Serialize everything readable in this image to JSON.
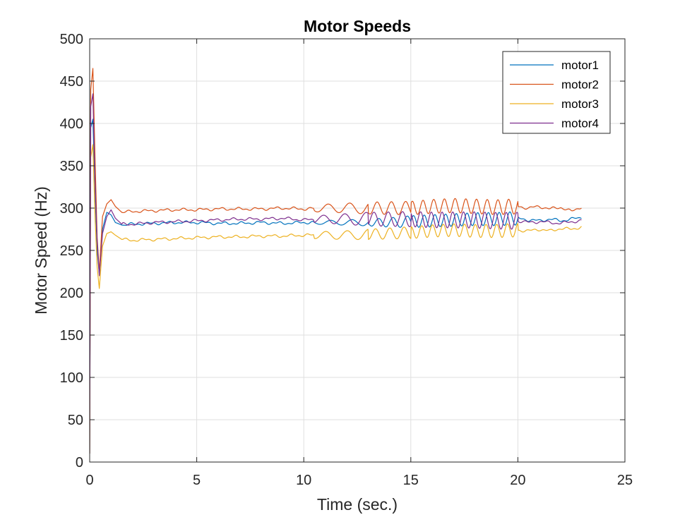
{
  "chart_data": {
    "type": "line",
    "title": "Motor Speeds",
    "xlabel": "Time (sec.)",
    "ylabel": "Motor Speed (Hz)",
    "xlim": [
      0,
      25
    ],
    "ylim": [
      0,
      500
    ],
    "xticks": [
      0,
      5,
      10,
      15,
      20,
      25
    ],
    "yticks": [
      0,
      50,
      100,
      150,
      200,
      250,
      300,
      350,
      400,
      450,
      500
    ],
    "grid": true,
    "legend_position": "top-right",
    "series": [
      {
        "name": "motor1",
        "color": "#0072BD",
        "x": [
          0,
          0.05,
          0.15,
          0.25,
          0.35,
          0.45,
          0.6,
          0.8,
          1.0,
          1.2,
          1.5,
          2,
          3,
          4,
          5,
          6,
          7,
          8,
          9,
          10,
          11,
          12,
          13,
          14,
          15,
          16,
          17,
          18,
          19,
          20,
          20.5,
          21,
          21.5,
          22,
          22.5,
          23
        ],
        "y": [
          10,
          395,
          405,
          320,
          250,
          222,
          275,
          295,
          292,
          283,
          280,
          281,
          282,
          283,
          283,
          282,
          282,
          283,
          282,
          283,
          283,
          283,
          283,
          283,
          284,
          285,
          286,
          287,
          287,
          288,
          286,
          285,
          287,
          285,
          287,
          289
        ],
        "osc": [
          [
            10.5,
            13,
            2,
            4,
            1.0
          ],
          [
            13,
            15,
            4,
            7,
            1.5
          ],
          [
            15,
            20,
            7,
            8,
            2.0
          ]
        ]
      },
      {
        "name": "motor2",
        "color": "#D95319",
        "x": [
          0,
          0.05,
          0.15,
          0.25,
          0.35,
          0.45,
          0.6,
          0.8,
          1.0,
          1.2,
          1.5,
          2,
          3,
          4,
          5,
          6,
          7,
          8,
          9,
          10,
          11,
          12,
          13,
          14,
          15,
          16,
          17,
          18,
          19,
          20,
          20.5,
          21,
          21.5,
          22,
          22.5,
          23
        ],
        "y": [
          10,
          440,
          465,
          360,
          265,
          225,
          290,
          305,
          310,
          302,
          295,
          296,
          297,
          298,
          298,
          299,
          299,
          299,
          300,
          299,
          300,
          300,
          300,
          300,
          300,
          302,
          303,
          302,
          301,
          302,
          300,
          302,
          299,
          301,
          296,
          302
        ],
        "osc": [
          [
            10.5,
            13,
            4,
            7,
            1.0
          ],
          [
            13,
            15,
            7,
            8,
            1.5
          ],
          [
            15,
            20,
            8,
            9,
            2.0
          ]
        ]
      },
      {
        "name": "motor3",
        "color": "#EDB120",
        "x": [
          0,
          0.05,
          0.15,
          0.25,
          0.35,
          0.45,
          0.6,
          0.8,
          1.0,
          1.2,
          1.5,
          2,
          3,
          4,
          5,
          6,
          7,
          8,
          9,
          10,
          11,
          12,
          13,
          14,
          15,
          16,
          17,
          18,
          19,
          20,
          20.5,
          21,
          21.5,
          22,
          22.5,
          23
        ],
        "y": [
          10,
          360,
          375,
          290,
          230,
          205,
          255,
          270,
          272,
          268,
          263,
          262,
          263,
          264,
          265,
          266,
          266,
          267,
          267,
          268,
          268,
          268,
          269,
          270,
          271,
          273,
          274,
          273,
          273,
          274,
          273,
          275,
          273,
          276,
          275,
          278
        ],
        "osc": [
          [
            10.5,
            13,
            4,
            6,
            1.0
          ],
          [
            13,
            15,
            6,
            7,
            1.5
          ],
          [
            15,
            20,
            7,
            8,
            2.0
          ]
        ]
      },
      {
        "name": "motor4",
        "color": "#7E2F8E",
        "x": [
          0,
          0.05,
          0.15,
          0.25,
          0.35,
          0.45,
          0.6,
          0.8,
          1.0,
          1.2,
          1.5,
          2,
          3,
          4,
          5,
          6,
          7,
          8,
          9,
          10,
          11,
          12,
          13,
          14,
          15,
          16,
          17,
          18,
          19,
          20,
          20.5,
          21,
          21.5,
          22,
          22.5,
          23
        ],
        "y": [
          10,
          420,
          435,
          330,
          260,
          220,
          270,
          290,
          298,
          288,
          281,
          281,
          283,
          284,
          285,
          286,
          287,
          287,
          288,
          286,
          287,
          287,
          287,
          287,
          287,
          286,
          286,
          286,
          285,
          285,
          283,
          284,
          283,
          282,
          284,
          285
        ],
        "osc": [
          [
            10.5,
            13,
            4,
            8,
            1.0
          ],
          [
            13,
            15,
            8,
            9,
            1.5
          ],
          [
            15,
            20,
            9,
            10,
            2.0
          ]
        ]
      }
    ]
  }
}
